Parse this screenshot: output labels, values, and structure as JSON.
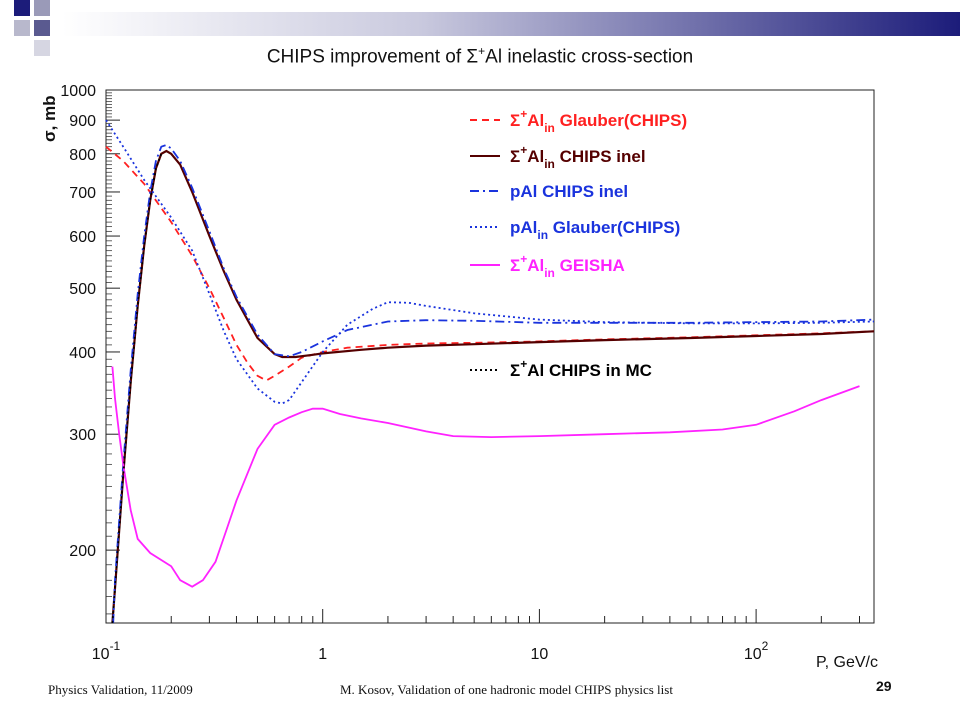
{
  "slide": {
    "title_prefix": "CHIPS improvement of ",
    "title_sigma": "Σ",
    "title_sup": "+",
    "title_suffix": "Al inelastic cross-section",
    "footer_left": "Physics Validation, 11/2009",
    "footer_center": "M. Kosov,  Validation of one hadronic model CHIPS physics list",
    "page_number": "29"
  },
  "colors": {
    "red": "#ff2020",
    "darkred": "#550000",
    "blue": "#1a33dd",
    "magenta": "#ff22ff",
    "black": "#000000",
    "header_bar_start": "#ffffff",
    "header_bar_end": "#1c1c7a"
  },
  "chart_data": {
    "type": "line",
    "xscale": "log",
    "yscale": "log",
    "xlim": [
      0.1,
      350
    ],
    "ylim": [
      155,
      1000
    ],
    "xlabel": "P, GeV/c",
    "ylabel": "σ, mb",
    "x_ticks": [
      {
        "value": 0.1,
        "base": "10",
        "exp": "-1"
      },
      {
        "value": 1,
        "base": "1",
        "exp": ""
      },
      {
        "value": 10,
        "base": "10",
        "exp": ""
      },
      {
        "value": 100,
        "base": "10",
        "exp": "2"
      }
    ],
    "y_ticks": [
      {
        "value": 1000,
        "label": "1000"
      },
      {
        "value": 900,
        "label": "900"
      },
      {
        "value": 800,
        "label": "800"
      },
      {
        "value": 700,
        "label": "700"
      },
      {
        "value": 600,
        "label": "600"
      },
      {
        "value": 500,
        "label": "500"
      },
      {
        "value": 400,
        "label": "400"
      },
      {
        "value": 300,
        "label": "300"
      },
      {
        "value": 200,
        "label": "200"
      }
    ],
    "legend_position": "top-right",
    "series": [
      {
        "legend": {
          "pre": "Σ",
          "sup": "+",
          "mid": "Al",
          "sub": "in",
          "post": " Glauber(CHIPS)"
        },
        "color": "red",
        "dash": "dash",
        "points": [
          [
            0.1,
            820
          ],
          [
            0.12,
            780
          ],
          [
            0.15,
            720
          ],
          [
            0.2,
            630
          ],
          [
            0.25,
            560
          ],
          [
            0.3,
            500
          ],
          [
            0.35,
            450
          ],
          [
            0.4,
            410
          ],
          [
            0.45,
            385
          ],
          [
            0.5,
            368
          ],
          [
            0.55,
            362
          ],
          [
            0.6,
            368
          ],
          [
            0.7,
            380
          ],
          [
            0.8,
            392
          ],
          [
            1.0,
            400
          ],
          [
            1.3,
            406
          ],
          [
            2,
            410
          ],
          [
            3,
            412
          ],
          [
            5,
            413
          ],
          [
            10,
            415
          ],
          [
            20,
            418
          ],
          [
            50,
            421
          ],
          [
            100,
            424
          ],
          [
            200,
            427
          ],
          [
            350,
            430
          ]
        ]
      },
      {
        "legend": {
          "pre": "Σ",
          "sup": "+",
          "mid": "Al",
          "sub": "in",
          "post": " CHIPS inel"
        },
        "color": "darkred",
        "dash": "solid",
        "points": [
          [
            0.107,
            155
          ],
          [
            0.11,
            175
          ],
          [
            0.12,
            260
          ],
          [
            0.13,
            360
          ],
          [
            0.14,
            470
          ],
          [
            0.15,
            580
          ],
          [
            0.16,
            680
          ],
          [
            0.17,
            760
          ],
          [
            0.18,
            800
          ],
          [
            0.19,
            808
          ],
          [
            0.2,
            800
          ],
          [
            0.22,
            770
          ],
          [
            0.25,
            700
          ],
          [
            0.3,
            600
          ],
          [
            0.35,
            530
          ],
          [
            0.4,
            480
          ],
          [
            0.5,
            420
          ],
          [
            0.6,
            397
          ],
          [
            0.65,
            393
          ],
          [
            0.75,
            393
          ],
          [
            0.9,
            396
          ],
          [
            1.0,
            398
          ],
          [
            1.5,
            403
          ],
          [
            2,
            406
          ],
          [
            3,
            409
          ],
          [
            5,
            411
          ],
          [
            10,
            414
          ],
          [
            20,
            417
          ],
          [
            50,
            420
          ],
          [
            100,
            423
          ],
          [
            200,
            426
          ],
          [
            350,
            430
          ]
        ]
      },
      {
        "legend": {
          "pre": "",
          "sup": "",
          "mid": "pAl CHIPS inel",
          "sub": "",
          "post": ""
        },
        "color": "blue",
        "dash": "dashdot",
        "points": [
          [
            0.108,
            155
          ],
          [
            0.11,
            180
          ],
          [
            0.12,
            270
          ],
          [
            0.13,
            375
          ],
          [
            0.14,
            490
          ],
          [
            0.15,
            600
          ],
          [
            0.16,
            700
          ],
          [
            0.17,
            780
          ],
          [
            0.18,
            820
          ],
          [
            0.19,
            825
          ],
          [
            0.2,
            815
          ],
          [
            0.22,
            780
          ],
          [
            0.25,
            710
          ],
          [
            0.3,
            610
          ],
          [
            0.35,
            535
          ],
          [
            0.4,
            485
          ],
          [
            0.5,
            425
          ],
          [
            0.6,
            397
          ],
          [
            0.7,
            394
          ],
          [
            0.8,
            400
          ],
          [
            1.0,
            415
          ],
          [
            1.3,
            432
          ],
          [
            2,
            445
          ],
          [
            3,
            447
          ],
          [
            5,
            446
          ],
          [
            10,
            443
          ],
          [
            20,
            443
          ],
          [
            50,
            443
          ],
          [
            100,
            444
          ],
          [
            200,
            445
          ],
          [
            350,
            448
          ]
        ]
      },
      {
        "legend": {
          "pre": "",
          "sup": "",
          "mid": "pAl",
          "sub": "in",
          "post": " Glauber(CHIPS)"
        },
        "color": "blue",
        "dash": "dot",
        "points": [
          [
            0.1,
            900
          ],
          [
            0.12,
            820
          ],
          [
            0.15,
            730
          ],
          [
            0.2,
            640
          ],
          [
            0.25,
            570
          ],
          [
            0.3,
            490
          ],
          [
            0.35,
            430
          ],
          [
            0.4,
            390
          ],
          [
            0.5,
            352
          ],
          [
            0.6,
            336
          ],
          [
            0.65,
            334
          ],
          [
            0.7,
            338
          ],
          [
            0.8,
            360
          ],
          [
            1.0,
            400
          ],
          [
            1.3,
            440
          ],
          [
            1.7,
            465
          ],
          [
            2,
            476
          ],
          [
            2.5,
            475
          ],
          [
            3,
            470
          ],
          [
            5,
            458
          ],
          [
            10,
            448
          ],
          [
            20,
            444
          ],
          [
            50,
            442
          ],
          [
            100,
            442
          ],
          [
            200,
            443
          ],
          [
            350,
            445
          ]
        ]
      },
      {
        "legend": {
          "pre": "Σ",
          "sup": "+",
          "mid": "Al",
          "sub": "in",
          "post": " GEISHA"
        },
        "color": "magenta",
        "dash": "solid",
        "points": [
          [
            0.107,
            380
          ],
          [
            0.11,
            340
          ],
          [
            0.115,
            300
          ],
          [
            0.12,
            270
          ],
          [
            0.13,
            230
          ],
          [
            0.14,
            208
          ],
          [
            0.16,
            198
          ],
          [
            0.2,
            189
          ],
          [
            0.22,
            180
          ],
          [
            0.25,
            176
          ],
          [
            0.28,
            180
          ],
          [
            0.32,
            192
          ],
          [
            0.36,
            215
          ],
          [
            0.4,
            238
          ],
          [
            0.5,
            285
          ],
          [
            0.6,
            310
          ],
          [
            0.7,
            318
          ],
          [
            0.8,
            324
          ],
          [
            0.9,
            328
          ],
          [
            1.0,
            328
          ],
          [
            1.2,
            322
          ],
          [
            1.5,
            317
          ],
          [
            2,
            312
          ],
          [
            3,
            303
          ],
          [
            4,
            298
          ],
          [
            6,
            297
          ],
          [
            10,
            298
          ],
          [
            20,
            300
          ],
          [
            40,
            302
          ],
          [
            70,
            305
          ],
          [
            100,
            310
          ],
          [
            150,
            325
          ],
          [
            200,
            338
          ],
          [
            300,
            355
          ]
        ]
      },
      {
        "legend": {
          "pre": "Σ",
          "sup": "+",
          "mid": "Al CHIPS in MC",
          "sub": "",
          "post": ""
        },
        "color": "black",
        "dash": "dot",
        "points": [
          [
            0.107,
            155
          ],
          [
            0.11,
            175
          ],
          [
            0.12,
            260
          ],
          [
            0.13,
            360
          ],
          [
            0.14,
            470
          ],
          [
            0.15,
            580
          ],
          [
            0.16,
            680
          ],
          [
            0.17,
            760
          ],
          [
            0.18,
            800
          ]
        ]
      }
    ]
  }
}
